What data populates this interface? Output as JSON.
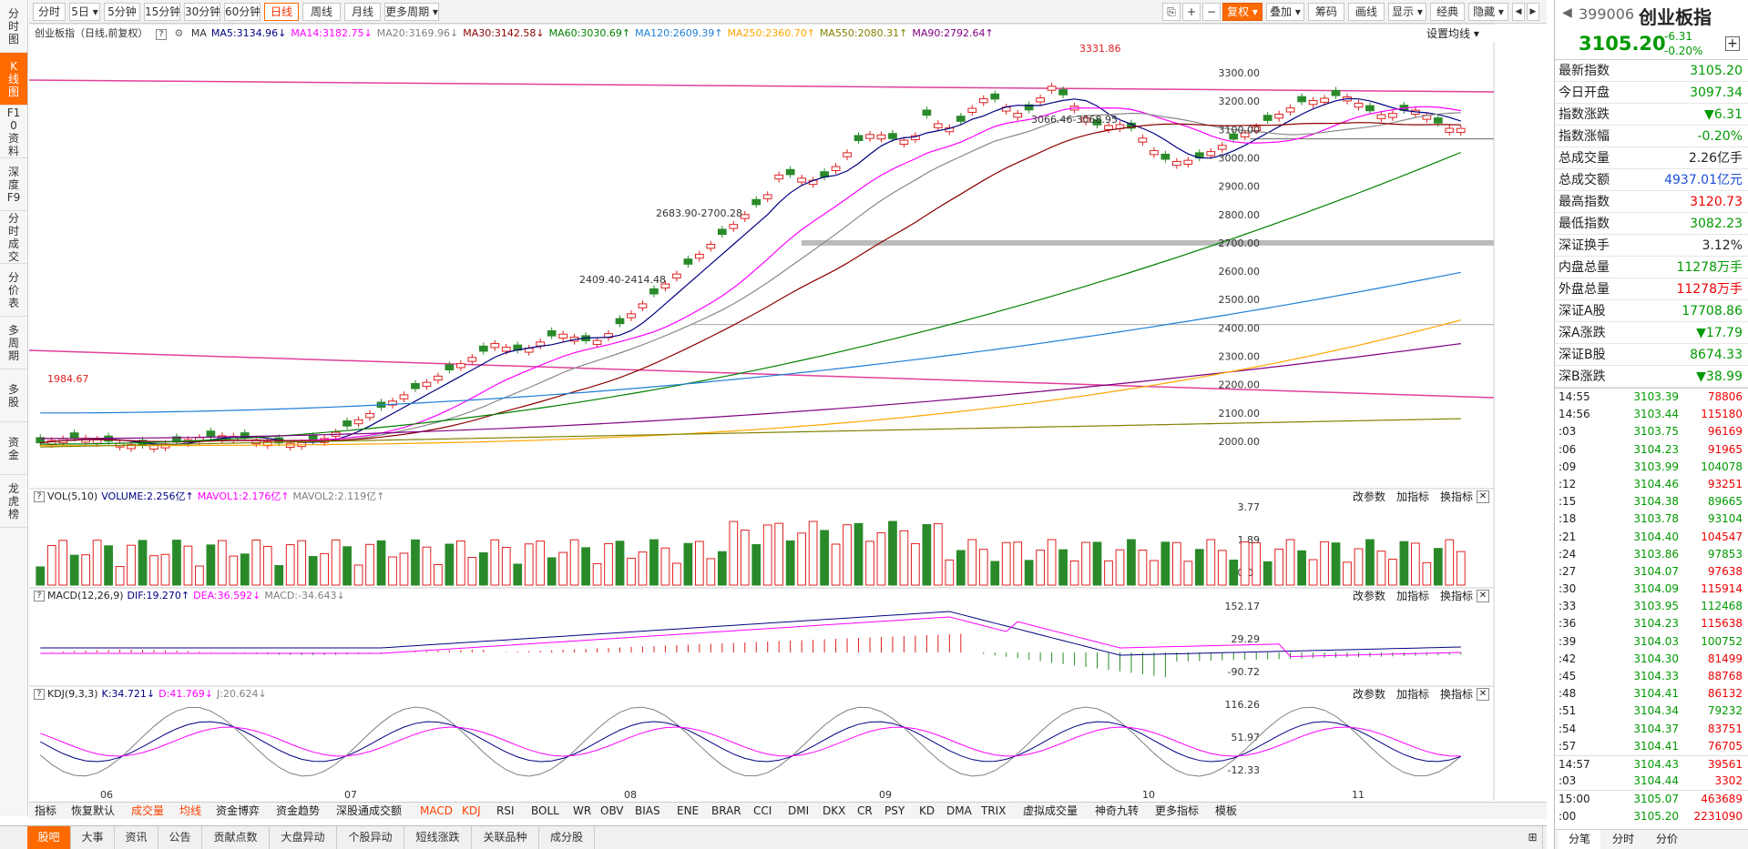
{
  "period_tabs": [
    "分时",
    "5日",
    "5分钟",
    "15分钟",
    "30分钟",
    "60分钟",
    "日线",
    "周线",
    "月线",
    "更多周期"
  ],
  "toolbar_right": [
    "复权",
    "叠加",
    "筹码",
    "画线",
    "显示",
    "经典",
    "隐藏"
  ],
  "left_nav": [
    "分时图",
    "K线图",
    "F10资料",
    "深度F9",
    "分时成交",
    "分价表",
    "多周期",
    "多股",
    "资金",
    "龙虎榜"
  ],
  "chart_title": "创业板指（日线,前复权）",
  "ma_legend": [
    {
      "text": "MA",
      "color": "#333333"
    },
    {
      "text": "MA5:3134.96↓",
      "color": "#000080"
    },
    {
      "text": "MA14:3182.75↓",
      "color": "#ff00ff"
    },
    {
      "text": "MA20:3169.96↓",
      "color": "#808080"
    },
    {
      "text": "MA30:3142.58↓",
      "color": "#8b0000"
    },
    {
      "text": "MA60:3030.69↑",
      "color": "#008000"
    },
    {
      "text": "MA120:2609.39↑",
      "color": "#1e7fd6"
    },
    {
      "text": "MA250:2360.70↑",
      "color": "#ffa500"
    },
    {
      "text": "MA550:2080.31↑",
      "color": "#808000"
    },
    {
      "text": "MA90:2792.64↑",
      "color": "#800080"
    }
  ],
  "ma_setting": "设置均线",
  "price_axis": [
    "3300.00",
    "3200.00",
    "3100.00",
    "3000.00",
    "2900.00",
    "2800.00",
    "2700.00",
    "2600.00",
    "2500.00",
    "2400.00",
    "2300.00",
    "2200.00",
    "2100.00",
    "2000.00"
  ],
  "annotations": {
    "high": "3331.86",
    "low": "1984.67",
    "gap1": "2683.90-2700.28",
    "gap2": "2409.40-2414.48",
    "gap3": "3066.46-3068.95"
  },
  "vol_panel": {
    "title": "VOL(5,10)",
    "items": [
      {
        "text": "VOLUME:2.256亿↑",
        "color": "#000080"
      },
      {
        "text": "MAVOL1:2.176亿↑",
        "color": "#ff00ff"
      },
      {
        "text": "MAVOL2:2.119亿↑",
        "color": "#808080"
      }
    ],
    "axis": [
      "3.77",
      "1.89",
      "0.00"
    ]
  },
  "macd_panel": {
    "title": "MACD(12,26,9)",
    "items": [
      {
        "text": "DIF:19.270↑",
        "color": "#000080"
      },
      {
        "text": "DEA:36.592↓",
        "color": "#ff00ff"
      },
      {
        "text": "MACD:-34.643↓",
        "color": "#808080"
      }
    ],
    "axis": [
      "152.17",
      "29.29",
      "-90.72"
    ]
  },
  "kdj_panel": {
    "title": "KDJ(9,3,3)",
    "items": [
      {
        "text": "K:34.721↓",
        "color": "#000080"
      },
      {
        "text": "D:41.769↓",
        "color": "#ff00ff"
      },
      {
        "text": "J:20.624↓",
        "color": "#808080"
      }
    ],
    "axis": [
      "116.26",
      "51.97",
      "-12.33"
    ]
  },
  "panel_buttons": [
    "改参数",
    "加指标",
    "换指标"
  ],
  "months": [
    "06",
    "07",
    "08",
    "09",
    "10",
    "11"
  ],
  "indicator_tabs": [
    "指标",
    "恢复默认",
    "成交量",
    "均线",
    "资金博弈",
    "资金趋势",
    "深股通成交额",
    "MACD",
    "KDJ",
    "RSI",
    "BOLL",
    "WR",
    "OBV",
    "BIAS",
    "ENE",
    "BRAR",
    "CCI",
    "DMI",
    "DKX",
    "CR",
    "PSY",
    "KD",
    "DMA",
    "TRIX",
    "虚拟成交量",
    "神奇九转",
    "更多指标",
    "模板"
  ],
  "bottom_tabs": [
    "股吧",
    "大事",
    "资讯",
    "公告",
    "贡献点数",
    "大盘异动",
    "个股异动",
    "短线涨跌",
    "关联品种",
    "成分股"
  ],
  "quote": {
    "code": "399006",
    "name": "创业板指",
    "price": "3105.20",
    "change": "-6.31",
    "pct": "-0.20%"
  },
  "stats": [
    {
      "k": "最新指数",
      "v": "3105.20",
      "c": "grn"
    },
    {
      "k": "今日开盘",
      "v": "3097.34",
      "c": "grn"
    },
    {
      "k": "指数涨跌",
      "v": "▼6.31",
      "c": "grn"
    },
    {
      "k": "指数涨幅",
      "v": "-0.20%",
      "c": "grn"
    },
    {
      "k": "总成交量",
      "v": "2.26亿手",
      "c": ""
    },
    {
      "k": "总成交额",
      "v": "4937.01亿元",
      "c": "blu"
    },
    {
      "k": "最高指数",
      "v": "3120.73",
      "c": "red"
    },
    {
      "k": "最低指数",
      "v": "3082.23",
      "c": "grn"
    },
    {
      "k": "深证换手",
      "v": "3.12%",
      "c": ""
    },
    {
      "k": "内盘总量",
      "v": "11278万手",
      "c": "grn"
    },
    {
      "k": "外盘总量",
      "v": "11278万手",
      "c": "red"
    },
    {
      "k": "深证A股",
      "v": "17708.86",
      "c": "grn"
    },
    {
      "k": "深A涨跌",
      "v": "▼17.79",
      "c": "grn"
    },
    {
      "k": "深证B股",
      "v": "8674.33",
      "c": "grn"
    },
    {
      "k": "深B涨跌",
      "v": "▼38.99",
      "c": "grn"
    }
  ],
  "ticks": [
    {
      "t": "14:55",
      "p": "3103.39",
      "v": "78806",
      "c": "red"
    },
    {
      "t": "14:56",
      "p": "3103.44",
      "v": "115180",
      "c": "red"
    },
    {
      "t": ":03",
      "p": "3103.75",
      "v": "96169",
      "c": "red"
    },
    {
      "t": ":06",
      "p": "3104.23",
      "v": "91965",
      "c": "red"
    },
    {
      "t": ":09",
      "p": "3103.99",
      "v": "104078",
      "c": "grn"
    },
    {
      "t": ":12",
      "p": "3104.46",
      "v": "93251",
      "c": "red"
    },
    {
      "t": ":15",
      "p": "3104.38",
      "v": "89665",
      "c": "grn"
    },
    {
      "t": ":18",
      "p": "3103.78",
      "v": "93104",
      "c": "grn"
    },
    {
      "t": ":21",
      "p": "3104.40",
      "v": "104547",
      "c": "red"
    },
    {
      "t": ":24",
      "p": "3103.86",
      "v": "97853",
      "c": "grn"
    },
    {
      "t": ":27",
      "p": "3104.07",
      "v": "97638",
      "c": "red"
    },
    {
      "t": ":30",
      "p": "3104.09",
      "v": "115914",
      "c": "red"
    },
    {
      "t": ":33",
      "p": "3103.95",
      "v": "112468",
      "c": "grn"
    },
    {
      "t": ":36",
      "p": "3104.23",
      "v": "115638",
      "c": "red"
    },
    {
      "t": ":39",
      "p": "3104.03",
      "v": "100752",
      "c": "grn"
    },
    {
      "t": ":42",
      "p": "3104.30",
      "v": "81499",
      "c": "red"
    },
    {
      "t": ":45",
      "p": "3104.33",
      "v": "88768",
      "c": "red"
    },
    {
      "t": ":48",
      "p": "3104.41",
      "v": "86132",
      "c": "red"
    },
    {
      "t": ":51",
      "p": "3104.34",
      "v": "79232",
      "c": "grn"
    },
    {
      "t": ":54",
      "p": "3104.37",
      "v": "83751",
      "c": "red"
    },
    {
      "t": ":57",
      "p": "3104.41",
      "v": "76705",
      "c": "red"
    },
    {
      "t": "14:57",
      "p": "3104.43",
      "v": "39561",
      "c": "red"
    },
    {
      "t": ":03",
      "p": "3104.44",
      "v": "3302",
      "c": "red"
    },
    {
      "t": "15:00",
      "p": "3105.07",
      "v": "463689",
      "c": "red"
    },
    {
      "t": ":00",
      "p": "3105.20",
      "v": "2231090",
      "c": "red"
    }
  ],
  "right_tabs": [
    "分笔",
    "分时",
    "分价"
  ]
}
